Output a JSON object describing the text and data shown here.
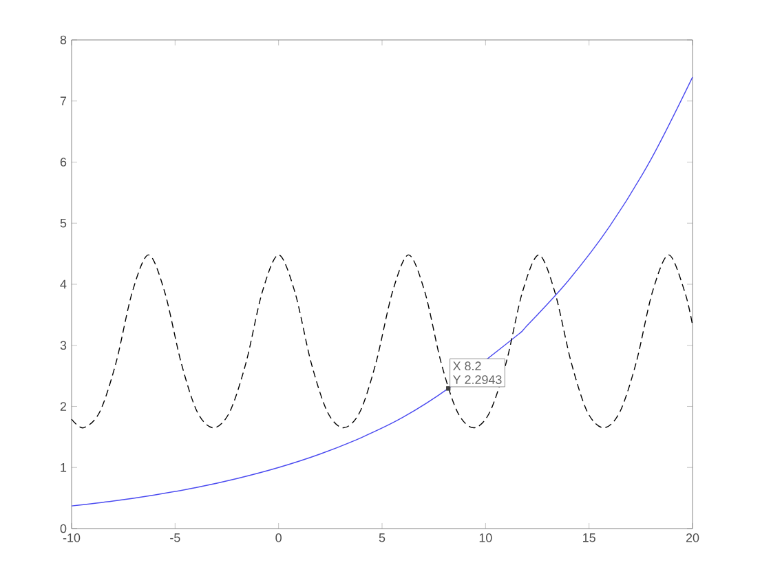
{
  "chart_data": {
    "type": "line",
    "xlim": [
      -10,
      20
    ],
    "ylim": [
      0,
      8
    ],
    "xticks": [
      -10,
      -5,
      0,
      5,
      10,
      15,
      20
    ],
    "yticks": [
      0,
      1,
      2,
      3,
      4,
      5,
      6,
      7,
      8
    ],
    "grid": false,
    "marker": "none",
    "series": [
      {
        "color": "#4b4bf0",
        "line_style": "solid",
        "x": [
          -10,
          -8,
          -6,
          -4,
          -2,
          0,
          2,
          4,
          6,
          8.2,
          11.4,
          12,
          14,
          16,
          18,
          20
        ],
        "values": [
          0.37,
          0.45,
          0.55,
          0.67,
          0.82,
          1,
          1.22,
          1.49,
          1.82,
          2.2943,
          3.13,
          3.32,
          4.06,
          4.95,
          6.05,
          7.39
        ]
      },
      {
        "color": "#000000",
        "line_style": "dashed",
        "x": [
          -10,
          -9.43,
          -8.64,
          -7.85,
          -7.07,
          -6.28,
          -5.5,
          -4.71,
          -3.93,
          -3.14,
          -2.36,
          -1.57,
          -0.79,
          0,
          0.79,
          1.57,
          2.36,
          3.14,
          3.93,
          4.71,
          5.5,
          6.28,
          7.07,
          7.85,
          8.64,
          9.43,
          10.21,
          11,
          11.78,
          12.57,
          13.35,
          14.14,
          14.92,
          15.71,
          16.49,
          17.28,
          18.06,
          18.85,
          19.63,
          20
        ],
        "values": [
          1.79,
          1.65,
          1.91,
          2.72,
          3.87,
          4.48,
          3.87,
          2.72,
          1.91,
          1.65,
          1.91,
          2.72,
          3.87,
          4.48,
          3.87,
          2.72,
          1.91,
          1.65,
          1.91,
          2.72,
          3.87,
          4.48,
          3.87,
          2.72,
          1.91,
          1.65,
          1.91,
          2.72,
          3.87,
          4.48,
          3.87,
          2.72,
          1.91,
          1.65,
          1.91,
          2.72,
          3.87,
          4.48,
          3.87,
          3.33
        ]
      }
    ],
    "annotations": [
      {
        "text": "X 8.2",
        "x": 8.2,
        "y": 2.2943
      },
      {
        "text": "Y 2.2943",
        "x": 8.2,
        "y": 2.2943
      }
    ]
  }
}
